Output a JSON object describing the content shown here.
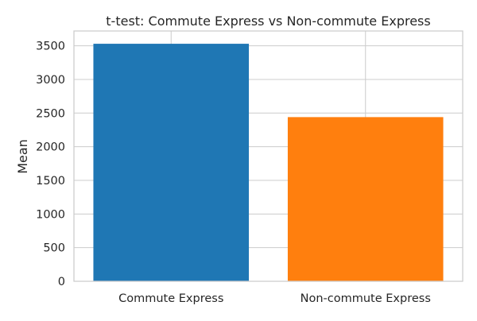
{
  "chart_data": {
    "type": "bar",
    "title": "t-test: Commute Express vs Non-commute Express",
    "xlabel": "",
    "ylabel": "Mean",
    "categories": [
      "Commute Express",
      "Non-commute Express"
    ],
    "values": [
      3530,
      2440
    ],
    "colors": [
      "#1f77b4",
      "#ff7f0e"
    ],
    "ylim": [
      0,
      3720
    ],
    "yticks": [
      0,
      500,
      1000,
      1500,
      2000,
      2500,
      3000,
      3500
    ],
    "grid": true,
    "legend": "none"
  }
}
